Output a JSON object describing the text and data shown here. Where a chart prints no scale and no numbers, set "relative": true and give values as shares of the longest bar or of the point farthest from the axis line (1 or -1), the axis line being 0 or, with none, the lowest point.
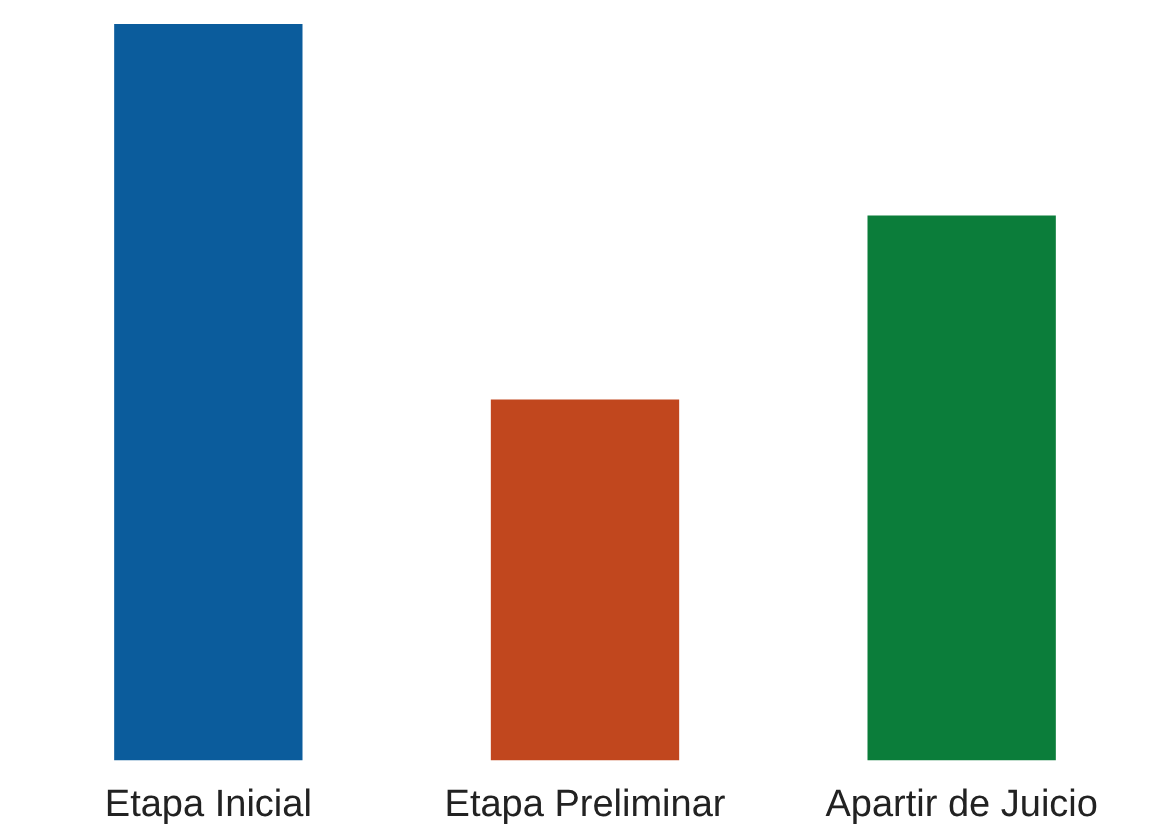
{
  "chart_data": {
    "type": "bar",
    "relative": true,
    "categories": [
      "Etapa Inicial",
      "Etapa Preliminar",
      "Apartir de Juicio"
    ],
    "values": [
      1,
      0.49,
      0.74
    ],
    "colors": [
      "#0b5c9c",
      "#c1471e",
      "#0b7d3a"
    ],
    "legend": false
  }
}
